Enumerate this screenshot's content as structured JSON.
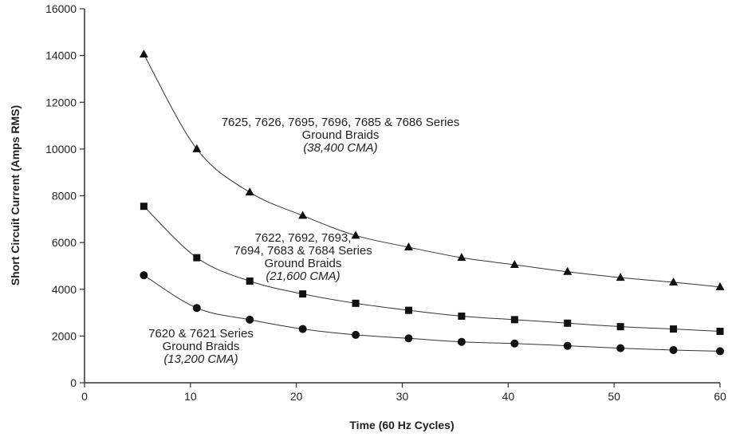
{
  "chart_data": {
    "type": "line",
    "title": "",
    "xlabel": "Time (60 Hz Cycles)",
    "ylabel": "Short Circuit Current (Amps RMS)",
    "xlim": [
      0,
      60
    ],
    "ylim": [
      0,
      16000
    ],
    "xticks": [
      "0",
      "10",
      "20",
      "30",
      "40",
      "50",
      "60"
    ],
    "yticks": [
      "0",
      "2000",
      "4000",
      "6000",
      "8000",
      "10000",
      "12000",
      "14000",
      "16000"
    ],
    "grid": false,
    "x": [
      5.6,
      10.6,
      15.6,
      20.6,
      25.6,
      30.6,
      35.6,
      40.6,
      45.6,
      50.6,
      55.6,
      60
    ],
    "series": [
      {
        "marker": "triangle",
        "values": [
          14050,
          10000,
          8150,
          7150,
          6300,
          5800,
          5350,
          5050,
          4750,
          4500,
          4300,
          4100
        ],
        "label_lines": [
          "7625, 7626, 7695, 7696, 7685 & 7686 Series",
          "Ground Braids"
        ],
        "label_italic": "(38,400 CMA)"
      },
      {
        "marker": "square",
        "values": [
          7550,
          5350,
          4350,
          3800,
          3400,
          3100,
          2850,
          2700,
          2550,
          2400,
          2300,
          2200
        ],
        "label_lines": [
          "7622, 7692, 7693,",
          "7694, 7683 & 7684 Series",
          "Ground Braids"
        ],
        "label_italic": "(21,600 CMA)"
      },
      {
        "marker": "circle",
        "values": [
          4600,
          3200,
          2700,
          2300,
          2050,
          1900,
          1750,
          1680,
          1580,
          1480,
          1400,
          1350
        ],
        "label_lines": [
          "7620 & 7621 Series",
          "Ground Braids"
        ],
        "label_italic": "(13,200 CMA)"
      }
    ],
    "colors": {
      "line": "#333333",
      "marker": "#111111",
      "axis": "#333333"
    }
  }
}
